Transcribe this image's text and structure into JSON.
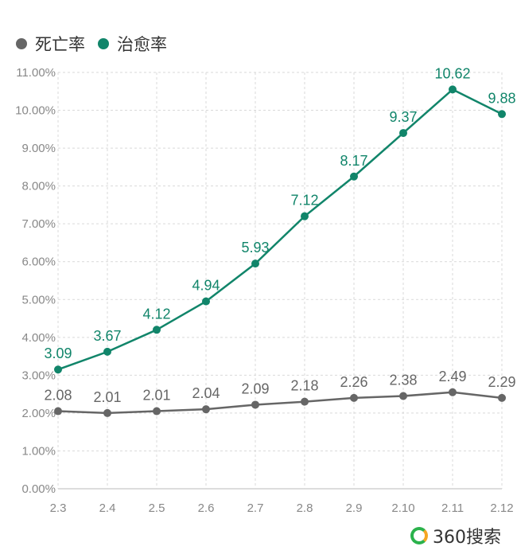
{
  "legend": {
    "items": [
      {
        "label": "死亡率",
        "color": "#666666"
      },
      {
        "label": "治愈率",
        "color": "#11856a"
      }
    ]
  },
  "brand": {
    "name": "360搜索"
  },
  "chart_data": {
    "type": "line",
    "categories": [
      "2.3",
      "2.4",
      "2.5",
      "2.6",
      "2.7",
      "2.8",
      "2.9",
      "2.10",
      "2.11",
      "2.12"
    ],
    "series": [
      {
        "name": "死亡率",
        "color": "#666666",
        "values": [
          2.08,
          2.01,
          2.01,
          2.04,
          2.09,
          2.18,
          2.26,
          2.38,
          2.49,
          2.29
        ]
      },
      {
        "name": "治愈率",
        "color": "#11856a",
        "values": [
          3.09,
          3.67,
          4.12,
          4.94,
          5.93,
          7.12,
          8.17,
          9.37,
          10.62,
          9.88
        ]
      }
    ],
    "plot_values": {
      "死亡率": [
        2.05,
        2.0,
        2.05,
        2.1,
        2.22,
        2.3,
        2.4,
        2.45,
        2.55,
        2.4
      ],
      "治愈率": [
        3.15,
        3.62,
        4.2,
        4.95,
        5.95,
        7.2,
        8.25,
        9.4,
        10.55,
        9.9
      ]
    },
    "yticks": [
      "0.00%",
      "1.00%",
      "2.00%",
      "3.00%",
      "4.00%",
      "5.00%",
      "6.00%",
      "7.00%",
      "8.00%",
      "9.00%",
      "10.00%",
      "11.00%"
    ],
    "ylim": [
      0,
      11
    ],
    "grid": true,
    "legend_position": "top-left"
  }
}
